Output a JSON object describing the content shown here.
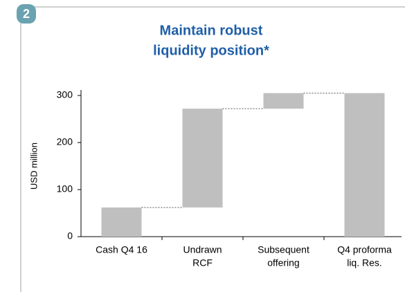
{
  "badge": "2",
  "chart_data": {
    "type": "waterfall",
    "title": [
      "Maintain robust",
      "liquidity position*"
    ],
    "y_label": "USD million",
    "categories": [
      [
        "Cash Q4 16"
      ],
      [
        "Undrawn",
        "RCF"
      ],
      [
        "Subsequent",
        "offering"
      ],
      [
        "Q4 proforma",
        "liq. Res."
      ]
    ],
    "values": [
      62,
      210,
      33,
      305
    ],
    "measures": [
      "absolute",
      "relative",
      "relative",
      "total"
    ],
    "color": "#bfbfbf",
    "ylim": [
      0,
      300
    ],
    "yticks": [
      0,
      100,
      200,
      300
    ]
  }
}
